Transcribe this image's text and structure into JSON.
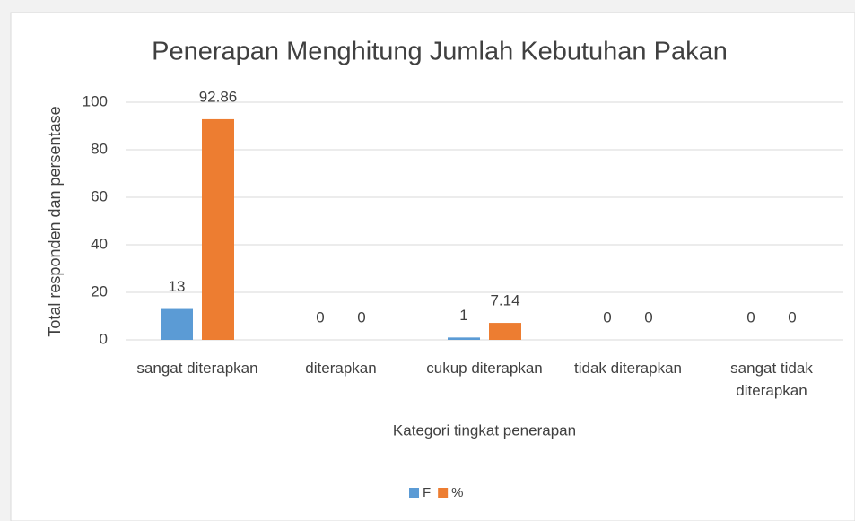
{
  "chart_data": {
    "type": "bar",
    "title": "Penerapan Menghitung Jumlah Kebutuhan Pakan",
    "x_label": "Kategori tingkat penerapan",
    "y_label": "Total responden dan persentase",
    "categories": [
      "sangat diterapkan",
      "diterapkan",
      "cukup diterapkan",
      "tidak diterapkan",
      "sangat tidak diterapkan"
    ],
    "series": [
      {
        "name": "F",
        "color": "#5b9bd5",
        "values": [
          13,
          0,
          1,
          0,
          0
        ]
      },
      {
        "name": "%",
        "color": "#ed7d31",
        "values": [
          92.86,
          0,
          7.14,
          0,
          0
        ]
      }
    ],
    "ylim": [
      0,
      100
    ],
    "yticks": [
      0,
      20,
      40,
      60,
      80,
      100
    ],
    "grid": true,
    "legend": "bottom"
  }
}
